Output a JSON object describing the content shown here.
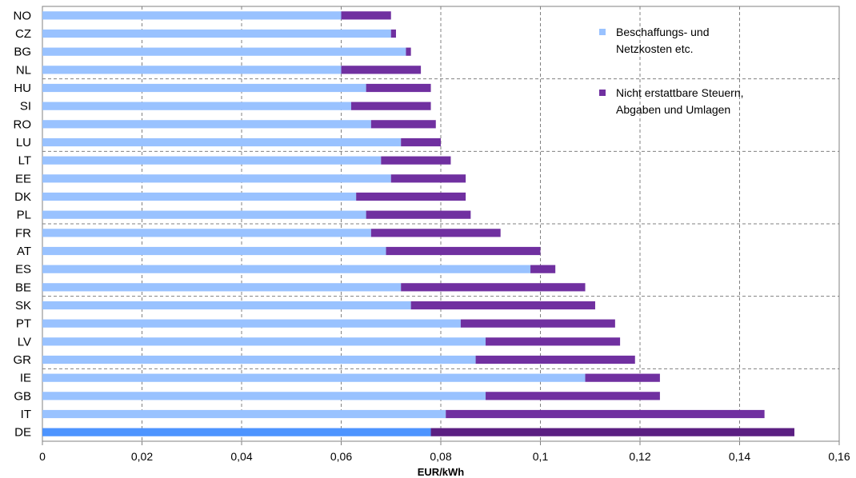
{
  "chart_data": {
    "type": "bar",
    "orientation": "horizontal",
    "stacked": true,
    "xlabel": "EUR/kWh",
    "xlim": [
      0,
      0.16
    ],
    "xticks": [
      0,
      0.02,
      0.04,
      0.06,
      0.08,
      0.1,
      0.12,
      0.14,
      0.16
    ],
    "xtick_labels": [
      "0",
      "0,02",
      "0,04",
      "0,06",
      "0,08",
      "0,1",
      "0,12",
      "0,14",
      "0,16"
    ],
    "grid": true,
    "legend_position": "top-right",
    "categories": [
      "NO",
      "CZ",
      "BG",
      "NL",
      "HU",
      "SI",
      "RO",
      "LU",
      "LT",
      "EE",
      "DK",
      "PL",
      "FR",
      "AT",
      "ES",
      "BE",
      "SK",
      "PT",
      "LV",
      "GR",
      "IE",
      "GB",
      "IT",
      "DE"
    ],
    "highlight_category": "DE",
    "series": [
      {
        "name": "Beschaffungs- und Netzkosten etc.",
        "color": "#99c2ff",
        "highlight_color": "#4d94ff",
        "values": [
          0.06,
          0.07,
          0.073,
          0.06,
          0.065,
          0.062,
          0.066,
          0.072,
          0.068,
          0.07,
          0.063,
          0.065,
          0.066,
          0.069,
          0.098,
          0.072,
          0.074,
          0.084,
          0.089,
          0.087,
          0.109,
          0.089,
          0.081,
          0.078
        ]
      },
      {
        "name": "Nicht erstattbare Steuern, Abgaben und Umlagen",
        "color": "#7030a0",
        "highlight_color": "#5b1f82",
        "values": [
          0.01,
          0.001,
          0.001,
          0.016,
          0.013,
          0.016,
          0.013,
          0.008,
          0.014,
          0.015,
          0.022,
          0.021,
          0.026,
          0.031,
          0.005,
          0.037,
          0.037,
          0.031,
          0.027,
          0.032,
          0.015,
          0.035,
          0.064,
          0.073
        ]
      }
    ],
    "legend": {
      "items": [
        {
          "lines": [
            "Beschaffungs- und",
            "Netzkosten etc."
          ],
          "color": "#99c2ff"
        },
        {
          "lines": [
            "Nicht erstattbare Steuern,",
            "Abgaben und Umlagen"
          ],
          "color": "#7030a0"
        }
      ]
    }
  }
}
